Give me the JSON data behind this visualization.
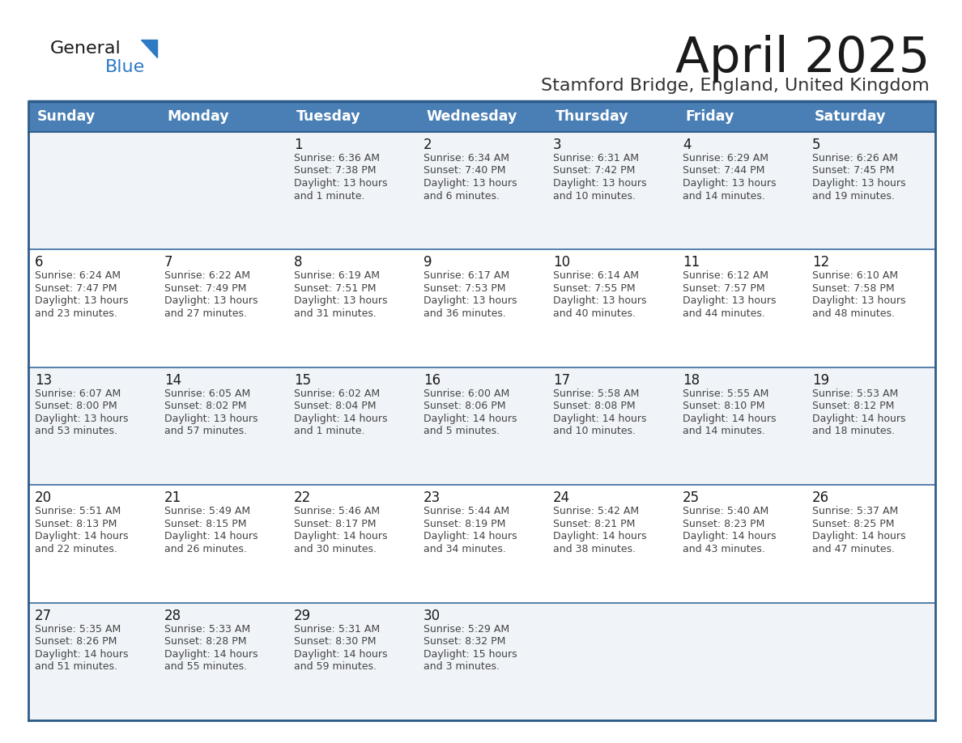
{
  "title": "April 2025",
  "subtitle": "Stamford Bridge, England, United Kingdom",
  "header_bg": "#4a7fb5",
  "header_text_color": "#ffffff",
  "cell_bg_light": "#f0f4f8",
  "cell_bg_white": "#ffffff",
  "border_color": "#2e5c8a",
  "text_border_color": "#3a6b9e",
  "day_names": [
    "Sunday",
    "Monday",
    "Tuesday",
    "Wednesday",
    "Thursday",
    "Friday",
    "Saturday"
  ],
  "title_color": "#1a1a1a",
  "subtitle_color": "#333333",
  "day_num_color": "#1a1a1a",
  "cell_text_color": "#444444",
  "logo_text_color": "#1a1a1a",
  "logo_blue_color": "#2e7bc4",
  "weeks": [
    [
      {
        "day": "",
        "lines": []
      },
      {
        "day": "",
        "lines": []
      },
      {
        "day": "1",
        "lines": [
          "Sunrise: 6:36 AM",
          "Sunset: 7:38 PM",
          "Daylight: 13 hours",
          "and 1 minute."
        ]
      },
      {
        "day": "2",
        "lines": [
          "Sunrise: 6:34 AM",
          "Sunset: 7:40 PM",
          "Daylight: 13 hours",
          "and 6 minutes."
        ]
      },
      {
        "day": "3",
        "lines": [
          "Sunrise: 6:31 AM",
          "Sunset: 7:42 PM",
          "Daylight: 13 hours",
          "and 10 minutes."
        ]
      },
      {
        "day": "4",
        "lines": [
          "Sunrise: 6:29 AM",
          "Sunset: 7:44 PM",
          "Daylight: 13 hours",
          "and 14 minutes."
        ]
      },
      {
        "day": "5",
        "lines": [
          "Sunrise: 6:26 AM",
          "Sunset: 7:45 PM",
          "Daylight: 13 hours",
          "and 19 minutes."
        ]
      }
    ],
    [
      {
        "day": "6",
        "lines": [
          "Sunrise: 6:24 AM",
          "Sunset: 7:47 PM",
          "Daylight: 13 hours",
          "and 23 minutes."
        ]
      },
      {
        "day": "7",
        "lines": [
          "Sunrise: 6:22 AM",
          "Sunset: 7:49 PM",
          "Daylight: 13 hours",
          "and 27 minutes."
        ]
      },
      {
        "day": "8",
        "lines": [
          "Sunrise: 6:19 AM",
          "Sunset: 7:51 PM",
          "Daylight: 13 hours",
          "and 31 minutes."
        ]
      },
      {
        "day": "9",
        "lines": [
          "Sunrise: 6:17 AM",
          "Sunset: 7:53 PM",
          "Daylight: 13 hours",
          "and 36 minutes."
        ]
      },
      {
        "day": "10",
        "lines": [
          "Sunrise: 6:14 AM",
          "Sunset: 7:55 PM",
          "Daylight: 13 hours",
          "and 40 minutes."
        ]
      },
      {
        "day": "11",
        "lines": [
          "Sunrise: 6:12 AM",
          "Sunset: 7:57 PM",
          "Daylight: 13 hours",
          "and 44 minutes."
        ]
      },
      {
        "day": "12",
        "lines": [
          "Sunrise: 6:10 AM",
          "Sunset: 7:58 PM",
          "Daylight: 13 hours",
          "and 48 minutes."
        ]
      }
    ],
    [
      {
        "day": "13",
        "lines": [
          "Sunrise: 6:07 AM",
          "Sunset: 8:00 PM",
          "Daylight: 13 hours",
          "and 53 minutes."
        ]
      },
      {
        "day": "14",
        "lines": [
          "Sunrise: 6:05 AM",
          "Sunset: 8:02 PM",
          "Daylight: 13 hours",
          "and 57 minutes."
        ]
      },
      {
        "day": "15",
        "lines": [
          "Sunrise: 6:02 AM",
          "Sunset: 8:04 PM",
          "Daylight: 14 hours",
          "and 1 minute."
        ]
      },
      {
        "day": "16",
        "lines": [
          "Sunrise: 6:00 AM",
          "Sunset: 8:06 PM",
          "Daylight: 14 hours",
          "and 5 minutes."
        ]
      },
      {
        "day": "17",
        "lines": [
          "Sunrise: 5:58 AM",
          "Sunset: 8:08 PM",
          "Daylight: 14 hours",
          "and 10 minutes."
        ]
      },
      {
        "day": "18",
        "lines": [
          "Sunrise: 5:55 AM",
          "Sunset: 8:10 PM",
          "Daylight: 14 hours",
          "and 14 minutes."
        ]
      },
      {
        "day": "19",
        "lines": [
          "Sunrise: 5:53 AM",
          "Sunset: 8:12 PM",
          "Daylight: 14 hours",
          "and 18 minutes."
        ]
      }
    ],
    [
      {
        "day": "20",
        "lines": [
          "Sunrise: 5:51 AM",
          "Sunset: 8:13 PM",
          "Daylight: 14 hours",
          "and 22 minutes."
        ]
      },
      {
        "day": "21",
        "lines": [
          "Sunrise: 5:49 AM",
          "Sunset: 8:15 PM",
          "Daylight: 14 hours",
          "and 26 minutes."
        ]
      },
      {
        "day": "22",
        "lines": [
          "Sunrise: 5:46 AM",
          "Sunset: 8:17 PM",
          "Daylight: 14 hours",
          "and 30 minutes."
        ]
      },
      {
        "day": "23",
        "lines": [
          "Sunrise: 5:44 AM",
          "Sunset: 8:19 PM",
          "Daylight: 14 hours",
          "and 34 minutes."
        ]
      },
      {
        "day": "24",
        "lines": [
          "Sunrise: 5:42 AM",
          "Sunset: 8:21 PM",
          "Daylight: 14 hours",
          "and 38 minutes."
        ]
      },
      {
        "day": "25",
        "lines": [
          "Sunrise: 5:40 AM",
          "Sunset: 8:23 PM",
          "Daylight: 14 hours",
          "and 43 minutes."
        ]
      },
      {
        "day": "26",
        "lines": [
          "Sunrise: 5:37 AM",
          "Sunset: 8:25 PM",
          "Daylight: 14 hours",
          "and 47 minutes."
        ]
      }
    ],
    [
      {
        "day": "27",
        "lines": [
          "Sunrise: 5:35 AM",
          "Sunset: 8:26 PM",
          "Daylight: 14 hours",
          "and 51 minutes."
        ]
      },
      {
        "day": "28",
        "lines": [
          "Sunrise: 5:33 AM",
          "Sunset: 8:28 PM",
          "Daylight: 14 hours",
          "and 55 minutes."
        ]
      },
      {
        "day": "29",
        "lines": [
          "Sunrise: 5:31 AM",
          "Sunset: 8:30 PM",
          "Daylight: 14 hours",
          "and 59 minutes."
        ]
      },
      {
        "day": "30",
        "lines": [
          "Sunrise: 5:29 AM",
          "Sunset: 8:32 PM",
          "Daylight: 15 hours",
          "and 3 minutes."
        ]
      },
      {
        "day": "",
        "lines": []
      },
      {
        "day": "",
        "lines": []
      },
      {
        "day": "",
        "lines": []
      }
    ]
  ]
}
